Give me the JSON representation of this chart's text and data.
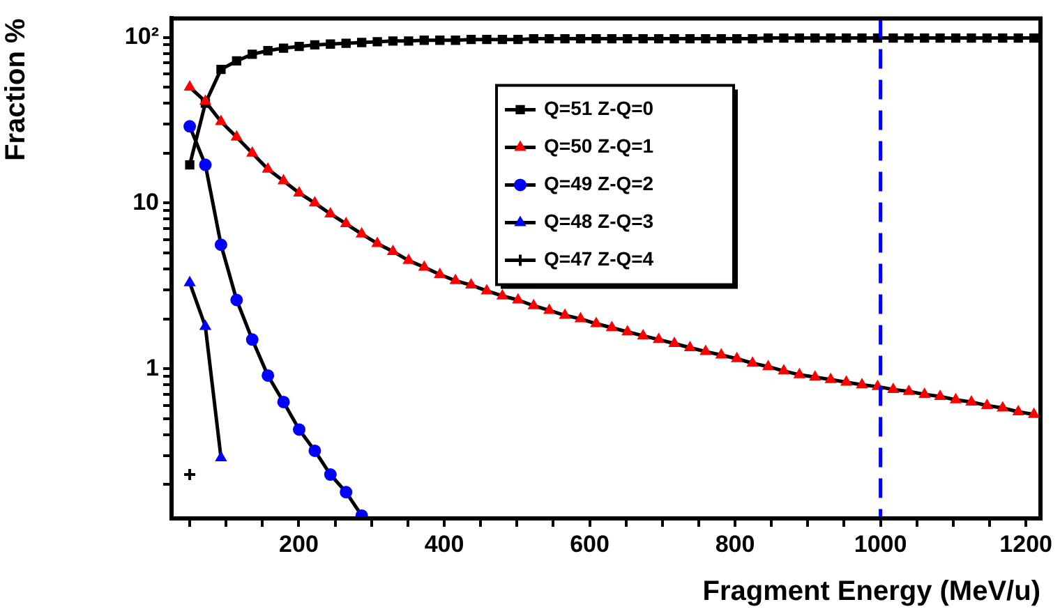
{
  "chart_data": {
    "type": "line",
    "xlabel": "Fragment Energy (MeV/u)",
    "ylabel": "Fraction %",
    "x": [
      50,
      71.5,
      93,
      114.5,
      136,
      157.5,
      179,
      200.5,
      222,
      243.5,
      265,
      286.5,
      308,
      329.5,
      351,
      372.5,
      394,
      415.5,
      437,
      458.5,
      480,
      501.5,
      523,
      544.5,
      566,
      587.5,
      609,
      630.5,
      652,
      673.5,
      695,
      716.5,
      738,
      759.5,
      781,
      802.5,
      824,
      845.5,
      867,
      888.5,
      910,
      931.5,
      953,
      974.5,
      996,
      1017.5,
      1039,
      1060.5,
      1082,
      1103.5,
      1125,
      1146.5,
      1168,
      1189.5,
      1211
    ],
    "series": [
      {
        "name": "Q=51 Z-Q=0",
        "color": "#000000",
        "marker": "square",
        "values": [
          17,
          40,
          64,
          72,
          79,
          83,
          86,
          88,
          90,
          91,
          92,
          93,
          94,
          95,
          95,
          96,
          96,
          96,
          97,
          97,
          97,
          97,
          98,
          98,
          98,
          98,
          98,
          98,
          98,
          98,
          98,
          98,
          98,
          98,
          98,
          98,
          98,
          99,
          99,
          99,
          99,
          99,
          99,
          99,
          99,
          99,
          99,
          99,
          99,
          99,
          99,
          99,
          99,
          99,
          99
        ]
      },
      {
        "name": "Q=50 Z-Q=1",
        "color": "#ff0000",
        "marker": "triangle",
        "values": [
          50,
          41,
          31,
          25,
          20,
          16,
          13.6,
          11.5,
          10,
          8.6,
          7.5,
          6.5,
          5.7,
          5.1,
          4.5,
          4.1,
          3.7,
          3.4,
          3.2,
          2.95,
          2.75,
          2.6,
          2.4,
          2.25,
          2.1,
          2.0,
          1.87,
          1.77,
          1.67,
          1.58,
          1.5,
          1.42,
          1.34,
          1.27,
          1.21,
          1.15,
          1.08,
          1.03,
          0.97,
          0.92,
          0.89,
          0.86,
          0.83,
          0.8,
          0.78,
          0.75,
          0.73,
          0.7,
          0.68,
          0.65,
          0.63,
          0.6,
          0.58,
          0.55,
          0.53
        ]
      },
      {
        "name": "Q=49 Z-Q=2",
        "color": "#0000ff",
        "marker": "circle",
        "values": [
          29,
          17,
          5.6,
          2.6,
          1.5,
          0.91,
          0.63,
          0.43,
          0.32,
          0.23,
          0.18,
          0.13,
          null,
          null,
          null,
          null,
          null,
          null,
          null,
          null,
          null,
          null,
          null,
          null,
          null,
          null,
          null,
          null,
          null,
          null,
          null,
          null,
          null,
          null,
          null,
          null,
          null,
          null,
          null,
          null,
          null,
          null,
          null,
          null,
          null,
          null,
          null,
          null,
          null,
          null,
          null,
          null,
          null,
          null,
          null
        ]
      },
      {
        "name": "Q=48 Z-Q=3",
        "color": "#0000ff",
        "marker": "triangle",
        "values": [
          3.3,
          1.8,
          0.29,
          null,
          null,
          null,
          null,
          null,
          null,
          null,
          null,
          null,
          null,
          null,
          null,
          null,
          null,
          null,
          null,
          null,
          null,
          null,
          null,
          null,
          null,
          null,
          null,
          null,
          null,
          null,
          null,
          null,
          null,
          null,
          null,
          null,
          null,
          null,
          null,
          null,
          null,
          null,
          null,
          null,
          null,
          null,
          null,
          null,
          null,
          null,
          null,
          null,
          null,
          null,
          null
        ]
      },
      {
        "name": "Q=47 Z-Q=4",
        "color": "#000000",
        "marker": "cross",
        "values": [
          0.23,
          null,
          null,
          null,
          null,
          null,
          null,
          null,
          null,
          null,
          null,
          null,
          null,
          null,
          null,
          null,
          null,
          null,
          null,
          null,
          null,
          null,
          null,
          null,
          null,
          null,
          null,
          null,
          null,
          null,
          null,
          null,
          null,
          null,
          null,
          null,
          null,
          null,
          null,
          null,
          null,
          null,
          null,
          null,
          null,
          null,
          null,
          null,
          null,
          null,
          null,
          null,
          null,
          null,
          null
        ]
      }
    ],
    "xlim": [
      25,
      1220
    ],
    "xticks": [
      {
        "value": 50,
        "label": null
      },
      {
        "value": 100,
        "label": null
      },
      {
        "value": 150,
        "label": null
      },
      200,
      {
        "value": 250,
        "label": null
      },
      {
        "value": 300,
        "label": null
      },
      {
        "value": 350,
        "label": null
      },
      400,
      {
        "value": 450,
        "label": null
      },
      {
        "value": 500,
        "label": null
      },
      {
        "value": 550,
        "label": null
      },
      600,
      {
        "value": 650,
        "label": null
      },
      {
        "value": 700,
        "label": null
      },
      {
        "value": 750,
        "label": null
      },
      800,
      {
        "value": 850,
        "label": null
      },
      {
        "value": 900,
        "label": null
      },
      {
        "value": 950,
        "label": null
      },
      1000,
      {
        "value": 1050,
        "label": null
      },
      {
        "value": 1100,
        "label": null
      },
      {
        "value": 1150,
        "label": null
      },
      1200
    ],
    "ylim": [
      0.125,
      130
    ],
    "yticks": [
      {
        "value": 0.2,
        "label": null
      },
      {
        "value": 0.3,
        "label": null
      },
      {
        "value": 0.4,
        "label": null
      },
      {
        "value": 0.5,
        "label": null
      },
      {
        "value": 0.6,
        "label": null
      },
      {
        "value": 0.7,
        "label": null
      },
      {
        "value": 0.8,
        "label": null
      },
      {
        "value": 0.9,
        "label": null
      },
      1,
      {
        "value": 2,
        "label": null
      },
      {
        "value": 3,
        "label": null
      },
      {
        "value": 4,
        "label": null
      },
      {
        "value": 5,
        "label": null
      },
      {
        "value": 6,
        "label": null
      },
      {
        "value": 7,
        "label": null
      },
      {
        "value": 8,
        "label": null
      },
      {
        "value": 9,
        "label": null
      },
      10,
      {
        "value": 20,
        "label": null
      },
      {
        "value": 30,
        "label": null
      },
      {
        "value": 40,
        "label": null
      },
      {
        "value": 50,
        "label": null
      },
      {
        "value": 60,
        "label": null
      },
      {
        "value": 70,
        "label": null
      },
      {
        "value": 80,
        "label": null
      },
      {
        "value": 90,
        "label": null
      },
      {
        "value": 100,
        "label": "10²"
      }
    ],
    "log": "y",
    "grid": false,
    "legend": "top",
    "ref_lines": [
      {
        "axis": "x",
        "value": 1000,
        "color": "#0000ff",
        "line_style": "dashed"
      }
    ]
  }
}
